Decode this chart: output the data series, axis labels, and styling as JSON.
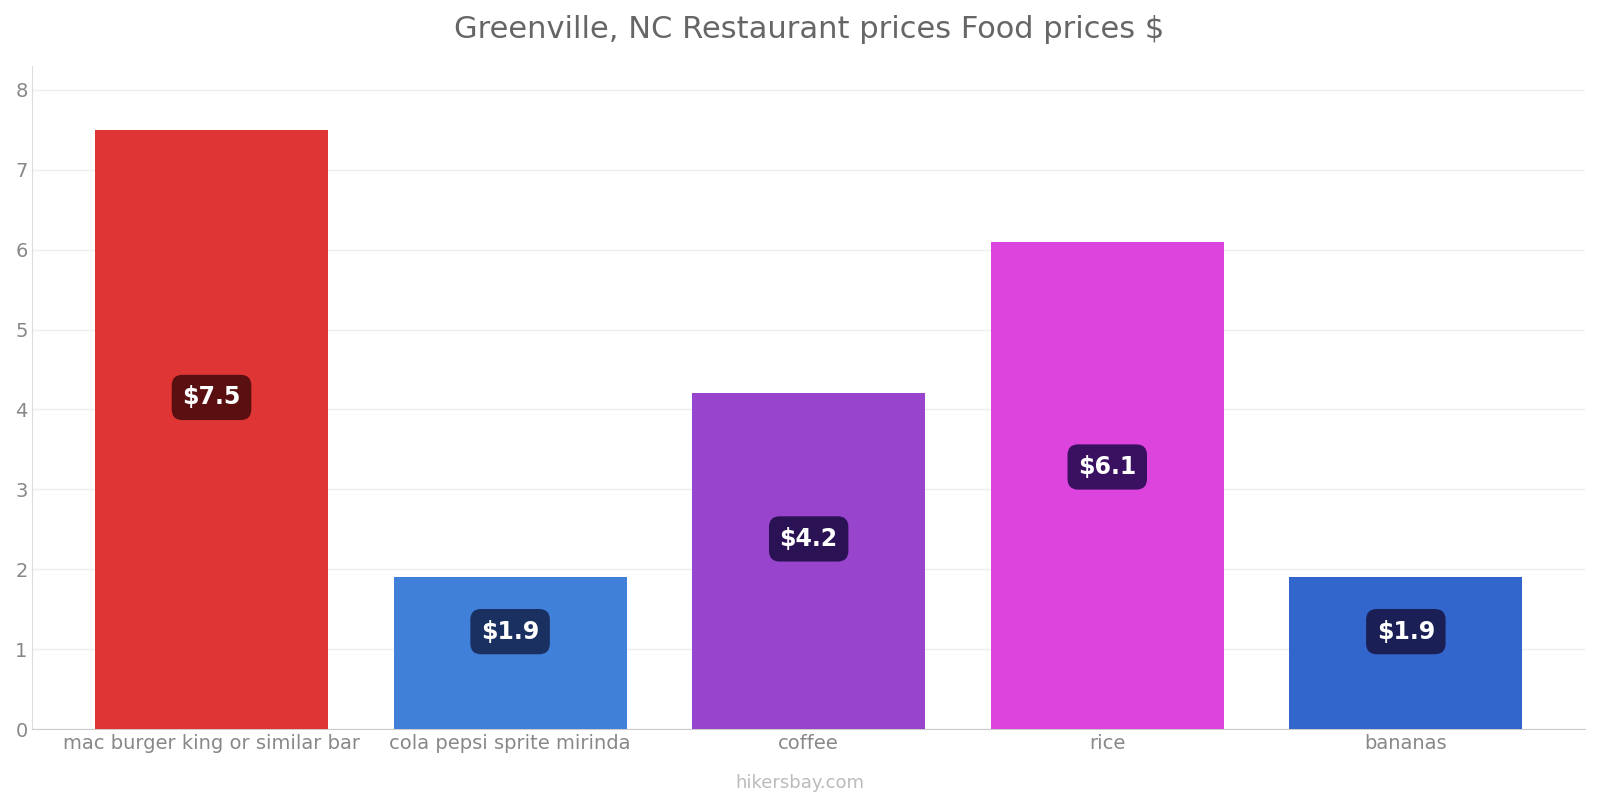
{
  "title": "Greenville, NC Restaurant prices Food prices $",
  "categories": [
    "mac burger king or similar bar",
    "cola pepsi sprite mirinda",
    "coffee",
    "rice",
    "bananas"
  ],
  "values": [
    7.5,
    1.9,
    4.2,
    6.1,
    1.9
  ],
  "bar_colors": [
    "#e03535",
    "#4080d8",
    "#9944cc",
    "#dd44dd",
    "#3366cc"
  ],
  "label_texts": [
    "$7.5",
    "$1.9",
    "$4.2",
    "$6.1",
    "$1.9"
  ],
  "label_box_colors": [
    "#5a1010",
    "#1a3060",
    "#2a1255",
    "#3a1060",
    "#1a2055"
  ],
  "label_y_positions": [
    4.15,
    1.22,
    2.38,
    3.28,
    1.22
  ],
  "ylim": [
    0,
    8.3
  ],
  "yticks": [
    0,
    1,
    2,
    3,
    4,
    5,
    6,
    7,
    8
  ],
  "title_fontsize": 22,
  "tick_fontsize": 14,
  "label_fontsize": 17,
  "watermark": "hikersbay.com",
  "background_color": "#ffffff",
  "bar_width": 0.78
}
